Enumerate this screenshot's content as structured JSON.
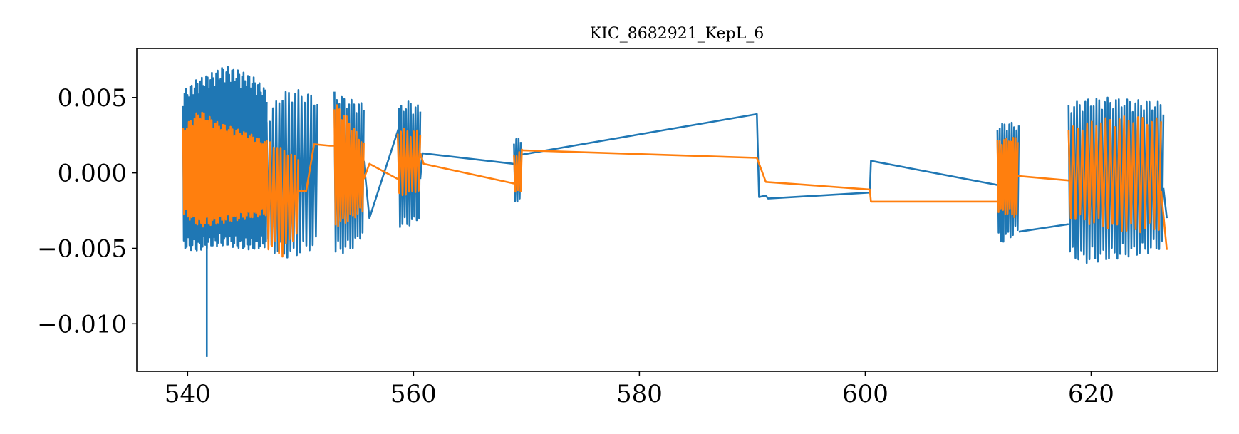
{
  "chart_data": {
    "type": "line",
    "title": "KIC_8682921_KepL_6",
    "xlabel": "",
    "ylabel": "",
    "xlim": [
      535.5,
      631.2
    ],
    "ylim": [
      -0.01315,
      0.00825
    ],
    "xticks": [
      540,
      560,
      580,
      600,
      620
    ],
    "xtick_labels": [
      "540",
      "560",
      "580",
      "600",
      "620"
    ],
    "yticks": [
      0.005,
      0.0,
      -0.005,
      -0.01
    ],
    "ytick_labels": [
      "0.005",
      "0.000",
      "−0.005",
      "−0.010"
    ],
    "grid": false,
    "legend": "none",
    "series": [
      {
        "color": "#1f77b4",
        "segments": [
          {
            "x_start": 539.6,
            "x_end": 547.0,
            "cycles": 58,
            "hi": [
              0.0054,
              0.0062,
              0.0066,
              0.0071,
              0.0068,
              0.0064,
              0.0055
            ],
            "lo": [
              -0.005,
              -0.0052,
              -0.0049,
              -0.0048,
              -0.005,
              -0.0051,
              -0.0049
            ]
          },
          {
            "x_start": 547.0,
            "x_end": 551.5,
            "cycles": 16,
            "hi": [
              0.0036,
              0.0052,
              0.0056,
              0.0054,
              0.005
            ],
            "lo": [
              -0.005,
              -0.0055,
              -0.0057,
              -0.0052,
              -0.005
            ]
          },
          {
            "x_start": 553.0,
            "x_end": 555.6,
            "cycles": 12,
            "hi": [
              0.0054,
              0.005,
              0.0048,
              0.0046
            ],
            "lo": [
              -0.0054,
              -0.0053,
              -0.005,
              -0.004
            ]
          },
          {
            "x_start": 558.7,
            "x_end": 560.6,
            "cycles": 9,
            "hi": [
              0.0044,
              0.0048,
              0.0044
            ],
            "lo": [
              -0.0036,
              -0.0035,
              -0.003
            ]
          },
          {
            "x_start": 568.9,
            "x_end": 569.5,
            "cycles": 3,
            "hi": [
              0.0022,
              0.0024
            ],
            "lo": [
              -0.002,
              -0.0018
            ]
          },
          {
            "x_start": 611.7,
            "x_end": 613.6,
            "cycles": 9,
            "hi": [
              0.0032,
              0.0034,
              0.0032
            ],
            "lo": [
              -0.0048,
              -0.0044,
              -0.004
            ]
          },
          {
            "x_start": 618.0,
            "x_end": 626.4,
            "cycles": 34,
            "hi": [
              0.0046,
              0.0049,
              0.005,
              0.0049,
              0.0048,
              0.0047
            ],
            "lo": [
              -0.0056,
              -0.006,
              -0.0058,
              -0.0056,
              -0.0054,
              -0.005
            ]
          }
        ],
        "spikes": [
          [
            541.7,
            -0.0122
          ]
        ],
        "connectors": [
          [
            [
              555.6,
              0.0008
            ],
            [
              556.1,
              -0.003
            ],
            [
              558.7,
              0.003
            ]
          ],
          [
            [
              560.6,
              -0.0004
            ],
            [
              560.8,
              0.0013
            ],
            [
              568.9,
              0.0006
            ]
          ],
          [
            [
              569.5,
              0.0012
            ],
            [
              590.4,
              0.0039
            ],
            [
              590.6,
              -0.0016
            ],
            [
              591.2,
              -0.0015
            ],
            [
              591.4,
              -0.0017
            ],
            [
              600.4,
              -0.0013
            ],
            [
              600.5,
              0.0008
            ],
            [
              611.7,
              -0.0008
            ]
          ],
          [
            [
              613.6,
              -0.0039
            ],
            [
              618.0,
              -0.0034
            ]
          ],
          [
            [
              626.4,
              -0.001
            ],
            [
              626.7,
              -0.003
            ]
          ]
        ]
      },
      {
        "color": "#ff7f0e",
        "segments": [
          {
            "x_start": 539.6,
            "x_end": 547.0,
            "cycles": 44,
            "hi": [
              0.003,
              0.0042,
              0.0034,
              0.003,
              0.0026,
              0.002
            ],
            "lo": [
              -0.0028,
              -0.0036,
              -0.0034,
              -0.0032,
              -0.003,
              -0.0028
            ]
          },
          {
            "x_start": 547.0,
            "x_end": 549.8,
            "cycles": 9,
            "hi": [
              0.0022,
              0.0016,
              0.001
            ],
            "lo": [
              -0.005,
              -0.0056,
              -0.004
            ]
          },
          {
            "x_start": 553.0,
            "x_end": 555.6,
            "cycles": 12,
            "hi": [
              0.0047,
              0.004,
              0.003,
              0.002
            ],
            "lo": [
              -0.0036,
              -0.0034,
              -0.003,
              -0.0026
            ]
          },
          {
            "x_start": 558.6,
            "x_end": 560.6,
            "cycles": 7,
            "hi": [
              0.003,
              0.0028
            ],
            "lo": [
              -0.0016,
              -0.0012
            ]
          },
          {
            "x_start": 568.9,
            "x_end": 569.6,
            "cycles": 3,
            "hi": [
              0.0012,
              0.0016
            ],
            "lo": [
              -0.0014,
              -0.0012
            ]
          },
          {
            "x_start": 611.7,
            "x_end": 613.5,
            "cycles": 9,
            "hi": [
              0.0022,
              0.0024
            ],
            "lo": [
              -0.0026,
              -0.003
            ]
          },
          {
            "x_start": 618.0,
            "x_end": 626.2,
            "cycles": 20,
            "hi": [
              0.003,
              0.0036,
              0.0038,
              0.0036
            ],
            "lo": [
              -0.003,
              -0.0036,
              -0.004,
              -0.0038
            ]
          }
        ],
        "spikes": [],
        "connectors": [
          [
            [
              549.8,
              -0.0012
            ],
            [
              550.5,
              -0.0012
            ],
            [
              551.2,
              0.0019
            ],
            [
              552.6,
              0.0018
            ],
            [
              553.0,
              0.0018
            ]
          ],
          [
            [
              555.6,
              -0.0004
            ],
            [
              556.1,
              0.0006
            ],
            [
              558.6,
              -0.0004
            ]
          ],
          [
            [
              560.6,
              0.0013
            ],
            [
              560.9,
              0.0006
            ],
            [
              568.9,
              -0.0007
            ]
          ],
          [
            [
              569.6,
              0.0015
            ],
            [
              590.4,
              0.001
            ],
            [
              591.2,
              -0.0006
            ],
            [
              600.4,
              -0.0011
            ],
            [
              600.5,
              -0.0019
            ],
            [
              611.7,
              -0.0019
            ]
          ],
          [
            [
              613.5,
              -0.0002
            ],
            [
              618.0,
              -0.0005
            ]
          ],
          [
            [
              626.2,
              -0.0012
            ],
            [
              626.7,
              -0.0051
            ]
          ]
        ]
      }
    ]
  }
}
